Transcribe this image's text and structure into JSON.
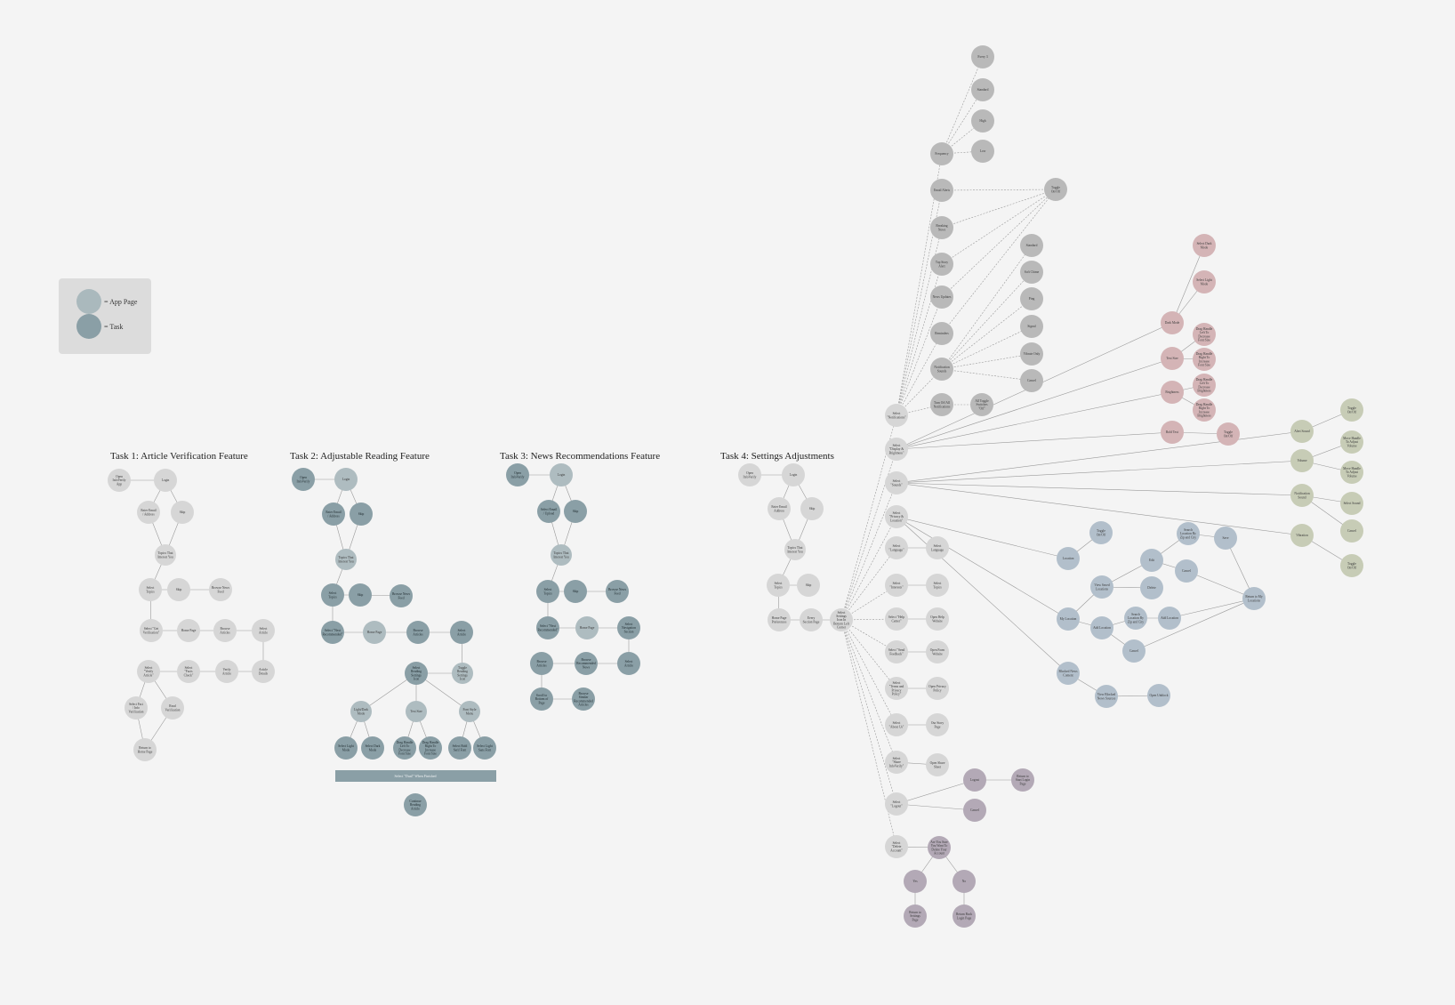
{
  "legend": {
    "app_page": "= App Page",
    "task": "= Task",
    "app_page_color": "#aab9bd",
    "task_color": "#8a9fa6"
  },
  "colors": {
    "light": "#d6d6d6",
    "gray": "#b9b9b9",
    "slate_light": "#aebcc0",
    "slate": "#8a9fa6",
    "blue": "#b2bfcb",
    "pink": "#d4b4b6",
    "olive": "#c7ccb6",
    "purple": "#b3a9b6",
    "bar": "#8a9fa6"
  },
  "titles": [
    "Task 1: Article Verification Feature",
    "Task 2: Adjustable Reading Feature",
    "Task 3: News Recommendations Feature",
    "Task 4: Settings Adjustments"
  ],
  "task2_bar_label": "Select \"Dual\" When Finished",
  "nodes": [
    {
      "id": "t1a",
      "label": "Open InfoVerify App",
      "c": "light"
    },
    {
      "id": "t1b",
      "label": "Login",
      "c": "light"
    },
    {
      "id": "t1c",
      "label": "Enter Email / Address",
      "c": "light"
    },
    {
      "id": "t1d",
      "label": "Skip",
      "c": "light"
    },
    {
      "id": "t1e",
      "label": "Topics That Interest You",
      "c": "light"
    },
    {
      "id": "t1f",
      "label": "Select Topics",
      "c": "light"
    },
    {
      "id": "t1g",
      "label": "Skip",
      "c": "light"
    },
    {
      "id": "t1h",
      "label": "Browse News Feed",
      "c": "light"
    },
    {
      "id": "t1i",
      "label": "Select \"Get Verification\"",
      "c": "light"
    },
    {
      "id": "t1j",
      "label": "Home Page",
      "c": "light"
    },
    {
      "id": "t1k",
      "label": "Browse Articles",
      "c": "light"
    },
    {
      "id": "t1l",
      "label": "Select Article",
      "c": "light"
    },
    {
      "id": "t1m",
      "label": "Article Details",
      "c": "light"
    },
    {
      "id": "t1n",
      "label": "Select \"Verify Article\"",
      "c": "light"
    },
    {
      "id": "t1o",
      "label": "Select \"Facts Check\"",
      "c": "light"
    },
    {
      "id": "t1p",
      "label": "Verify Article",
      "c": "light"
    },
    {
      "id": "t1q",
      "label": "Select Fact / Info Verification",
      "c": "light"
    },
    {
      "id": "t1r",
      "label": "Read Verification",
      "c": "light"
    },
    {
      "id": "t1s",
      "label": "Return to Home Page",
      "c": "light"
    },
    {
      "id": "t2a",
      "label": "Open InfoVerify",
      "c": "slate"
    },
    {
      "id": "t2b",
      "label": "Login",
      "c": "slate_light"
    },
    {
      "id": "t2c",
      "label": "Enter Email / Address",
      "c": "slate"
    },
    {
      "id": "t2d",
      "label": "Skip",
      "c": "slate"
    },
    {
      "id": "t2e",
      "label": "Topics That Interest You",
      "c": "slate_light"
    },
    {
      "id": "t2f",
      "label": "Select Topics",
      "c": "slate"
    },
    {
      "id": "t2g",
      "label": "Skip",
      "c": "slate"
    },
    {
      "id": "t2h",
      "label": "Browse News Feed",
      "c": "slate"
    },
    {
      "id": "t2i",
      "label": "Select \"Next Recommended\"",
      "c": "slate"
    },
    {
      "id": "t2j",
      "label": "Home Page",
      "c": "slate_light"
    },
    {
      "id": "t2k",
      "label": "Browse Articles",
      "c": "slate"
    },
    {
      "id": "t2l",
      "label": "Select Article",
      "c": "slate"
    },
    {
      "id": "t2m",
      "label": "Select Reading Settings Icon",
      "c": "slate"
    },
    {
      "id": "t2n",
      "label": "Toggle Reading Settings Icon",
      "c": "slate_light"
    },
    {
      "id": "t2o",
      "label": "Light/Dark Mode",
      "c": "slate_light"
    },
    {
      "id": "t2p",
      "label": "Text Size",
      "c": "slate_light"
    },
    {
      "id": "t2q",
      "label": "Font Style Menu",
      "c": "slate_light"
    },
    {
      "id": "t2r",
      "label": "Select Light Mode",
      "c": "slate"
    },
    {
      "id": "t2s",
      "label": "Select Dark Mode",
      "c": "slate"
    },
    {
      "id": "t2t",
      "label": "Drag Handle Left To Decrease Font Size",
      "c": "slate"
    },
    {
      "id": "t2u",
      "label": "Drag Handle Right To Increase Font Size",
      "c": "slate"
    },
    {
      "id": "t2v",
      "label": "Select Bold Serif Font",
      "c": "slate"
    },
    {
      "id": "t2w",
      "label": "Select Light Sans Font",
      "c": "slate"
    },
    {
      "id": "t2x",
      "label": "Continue Reading Article",
      "c": "slate"
    },
    {
      "id": "t3a",
      "label": "Open InfoVerify",
      "c": "slate"
    },
    {
      "id": "t3b",
      "label": "Login",
      "c": "slate_light"
    },
    {
      "id": "t3c",
      "label": "Select Email / Upload",
      "c": "slate"
    },
    {
      "id": "t3d",
      "label": "Skip",
      "c": "slate"
    },
    {
      "id": "t3e",
      "label": "Topics That Interest You",
      "c": "slate_light"
    },
    {
      "id": "t3f",
      "label": "Select Topics",
      "c": "slate"
    },
    {
      "id": "t3g",
      "label": "Skip",
      "c": "slate"
    },
    {
      "id": "t3h",
      "label": "Browse News Feed",
      "c": "slate"
    },
    {
      "id": "t3i",
      "label": "Select \"Next Recommended\"",
      "c": "slate"
    },
    {
      "id": "t3j",
      "label": "Home Page",
      "c": "slate_light"
    },
    {
      "id": "t3k",
      "label": "Select Navigation Section",
      "c": "slate"
    },
    {
      "id": "t3l",
      "label": "Browse Articles",
      "c": "slate"
    },
    {
      "id": "t3m",
      "label": "Browse Recommended News",
      "c": "slate"
    },
    {
      "id": "t3n",
      "label": "Select Article",
      "c": "slate"
    },
    {
      "id": "t3o",
      "label": "Scroll to Bottom of Page",
      "c": "slate"
    },
    {
      "id": "t3p",
      "label": "Browse Similar Recommended Articles",
      "c": "slate"
    },
    {
      "id": "t4a",
      "label": "Open InfoVerify",
      "c": "light"
    },
    {
      "id": "t4b",
      "label": "Login",
      "c": "light"
    },
    {
      "id": "t4c",
      "label": "Enter Email Address",
      "c": "light"
    },
    {
      "id": "t4d",
      "label": "Skip",
      "c": "light"
    },
    {
      "id": "t4e",
      "label": "Topics That Interest You",
      "c": "light"
    },
    {
      "id": "t4f",
      "label": "Select Topics",
      "c": "light"
    },
    {
      "id": "t4g",
      "label": "Skip",
      "c": "light"
    },
    {
      "id": "t4h",
      "label": "Home Page Preferences",
      "c": "light"
    },
    {
      "id": "t4i",
      "label": "Every Section Page",
      "c": "light"
    },
    {
      "id": "t4j",
      "label": "Select Settings Icon In Bottom Left Corner",
      "c": "light"
    },
    {
      "id": "s1",
      "label": "Select \"Notifications\"",
      "c": "light"
    },
    {
      "id": "s2",
      "label": "Select \"Display & Brightness\"",
      "c": "light"
    },
    {
      "id": "s3",
      "label": "Select \"Sounds\"",
      "c": "light"
    },
    {
      "id": "s4",
      "label": "Select \"Privacy & Location\"",
      "c": "light"
    },
    {
      "id": "s5",
      "label": "Select \"Language\"",
      "c": "light"
    },
    {
      "id": "s6",
      "label": "Select \"Interests\"",
      "c": "light"
    },
    {
      "id": "s7",
      "label": "Select \"Help Center\"",
      "c": "light"
    },
    {
      "id": "s8",
      "label": "Select \"Send Feedback\"",
      "c": "light"
    },
    {
      "id": "s9",
      "label": "Select \"Terms and Privacy Policy\"",
      "c": "light"
    },
    {
      "id": "s10",
      "label": "Select \"About Us\"",
      "c": "light"
    },
    {
      "id": "s11",
      "label": "Select \"Share InfoVerify\"",
      "c": "light"
    },
    {
      "id": "s12",
      "label": "Select \"Logout\"",
      "c": "light"
    },
    {
      "id": "s13",
      "label": "Select \"Delete Account\"",
      "c": "light"
    },
    {
      "id": "r5",
      "label": "Select Language",
      "c": "light"
    },
    {
      "id": "r6",
      "label": "Select Topics",
      "c": "light"
    },
    {
      "id": "r7",
      "label": "Open Help Website",
      "c": "light"
    },
    {
      "id": "r8",
      "label": "Open Form Website",
      "c": "light"
    },
    {
      "id": "r9",
      "label": "Open Privacy Policy",
      "c": "light"
    },
    {
      "id": "r10",
      "label": "Our Story Page",
      "c": "light"
    },
    {
      "id": "r11",
      "label": "Open Share Sheet",
      "c": "light"
    },
    {
      "id": "n1",
      "label": "Frequency",
      "c": "gray"
    },
    {
      "id": "n2",
      "label": "Email Alerts",
      "c": "gray"
    },
    {
      "id": "n3",
      "label": "Breaking News",
      "c": "gray"
    },
    {
      "id": "n4",
      "label": "Top Story Alert",
      "c": "gray"
    },
    {
      "id": "n5",
      "label": "News Updates",
      "c": "gray"
    },
    {
      "id": "n6",
      "label": "Reminders",
      "c": "gray"
    },
    {
      "id": "n7",
      "label": "Notification Sounds",
      "c": "gray"
    },
    {
      "id": "n8",
      "label": "Turn Off All Notifications",
      "c": "gray"
    },
    {
      "id": "f1",
      "label": "Every 3",
      "c": "gray"
    },
    {
      "id": "f2",
      "label": "Standard",
      "c": "gray"
    },
    {
      "id": "f3",
      "label": "High",
      "c": "gray"
    },
    {
      "id": "f4",
      "label": "Low",
      "c": "gray"
    },
    {
      "id": "tg",
      "label": "Toggle On/Off",
      "c": "gray"
    },
    {
      "id": "d1",
      "label": "Standard",
      "c": "gray"
    },
    {
      "id": "d2",
      "label": "Soft Chime",
      "c": "gray"
    },
    {
      "id": "d3",
      "label": "Ping",
      "c": "gray"
    },
    {
      "id": "d4",
      "label": "Signal",
      "c": "gray"
    },
    {
      "id": "d5",
      "label": "Vibrate Only",
      "c": "gray"
    },
    {
      "id": "d6",
      "label": "Cancel",
      "c": "gray"
    },
    {
      "id": "ao",
      "label": "All Toggle Switches \"Off\"",
      "c": "gray"
    },
    {
      "id": "p1",
      "label": "Dark Mode",
      "c": "pink"
    },
    {
      "id": "p2",
      "label": "Text Size",
      "c": "pink"
    },
    {
      "id": "p3",
      "label": "Brightness",
      "c": "pink"
    },
    {
      "id": "p4",
      "label": "Bold Text",
      "c": "pink"
    },
    {
      "id": "p5",
      "label": "Select Dark Mode",
      "c": "pink"
    },
    {
      "id": "p6",
      "label": "Select Light Mode",
      "c": "pink"
    },
    {
      "id": "p7",
      "label": "Drag Handle Left To Decrease Font Size",
      "c": "pink"
    },
    {
      "id": "p8",
      "label": "Drag Handle Right To Increase Font Size",
      "c": "pink"
    },
    {
      "id": "p9",
      "label": "Drag Handle Left To Decrease Brightness",
      "c": "pink"
    },
    {
      "id": "p10",
      "label": "Drag Handle Right To Increase Brightness",
      "c": "pink"
    },
    {
      "id": "p11",
      "label": "Toggle On/Off",
      "c": "pink"
    },
    {
      "id": "o1",
      "label": "Alert Sound",
      "c": "olive"
    },
    {
      "id": "o2",
      "label": "Volume",
      "c": "olive"
    },
    {
      "id": "o3",
      "label": "Notification Sound",
      "c": "olive"
    },
    {
      "id": "o4",
      "label": "Vibration",
      "c": "olive"
    },
    {
      "id": "o5",
      "label": "Toggle On/Off",
      "c": "olive"
    },
    {
      "id": "o6",
      "label": "Move Handle To Adjust Volume",
      "c": "olive"
    },
    {
      "id": "o7",
      "label": "Move Handle To Adjust Volume",
      "c": "olive"
    },
    {
      "id": "o8",
      "label": "Select Sound",
      "c": "olive"
    },
    {
      "id": "o9",
      "label": "Cancel",
      "c": "olive"
    },
    {
      "id": "o10",
      "label": "Toggle On/Off",
      "c": "olive"
    },
    {
      "id": "b1",
      "label": "Location",
      "c": "blue"
    },
    {
      "id": "b2",
      "label": "My Location",
      "c": "blue"
    },
    {
      "id": "b3",
      "label": "Blocked News Content",
      "c": "blue"
    },
    {
      "id": "b4",
      "label": "Toggle On/Off",
      "c": "blue"
    },
    {
      "id": "b5",
      "label": "View Saved Locations",
      "c": "blue"
    },
    {
      "id": "b6",
      "label": "Add Location",
      "c": "blue"
    },
    {
      "id": "b7",
      "label": "Edit",
      "c": "blue"
    },
    {
      "id": "b8",
      "label": "Delete",
      "c": "blue"
    },
    {
      "id": "b9",
      "label": "Search Location By Zip and City",
      "c": "blue"
    },
    {
      "id": "b10",
      "label": "Cancel",
      "c": "blue"
    },
    {
      "id": "b11",
      "label": "Search Location By Zip and City",
      "c": "blue"
    },
    {
      "id": "b12",
      "label": "Add Location",
      "c": "blue"
    },
    {
      "id": "b13",
      "label": "Save",
      "c": "blue"
    },
    {
      "id": "b14",
      "label": "Return to My Locations",
      "c": "blue"
    },
    {
      "id": "b15",
      "label": "Cancel",
      "c": "blue"
    },
    {
      "id": "b16",
      "label": "View Blocked News Sources",
      "c": "blue"
    },
    {
      "id": "b17",
      "label": "Open Unblock",
      "c": "blue"
    },
    {
      "id": "u1",
      "label": "Logout",
      "c": "purple"
    },
    {
      "id": "u2",
      "label": "Cancel",
      "c": "purple"
    },
    {
      "id": "u3",
      "label": "Return to Start Login Page",
      "c": "purple"
    },
    {
      "id": "u4",
      "label": "Are You Sure You Want To Delete Your Account",
      "c": "purple"
    },
    {
      "id": "u5",
      "label": "Yes",
      "c": "purple"
    },
    {
      "id": "u6",
      "label": "No",
      "c": "purple"
    },
    {
      "id": "u7",
      "label": "Return to Settings Page",
      "c": "purple"
    },
    {
      "id": "u8",
      "label": "Return Back Login Page",
      "c": "purple"
    }
  ]
}
